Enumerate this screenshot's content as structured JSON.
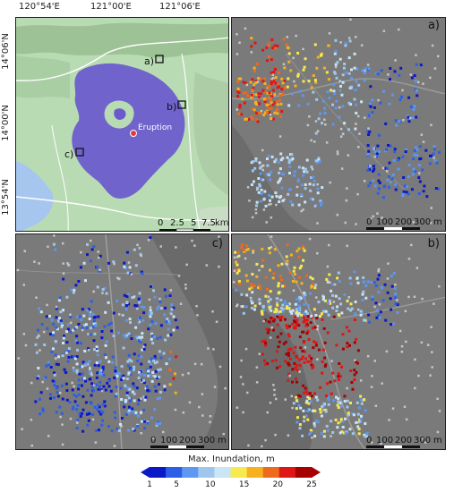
{
  "overview": {
    "lon_ticks": [
      "120°54'E",
      "121°00'E",
      "121°06'E"
    ],
    "lat_ticks": [
      "14°06'N",
      "14°00'N",
      "13°54'N"
    ],
    "eruption_label": "Eruption",
    "box_labels": [
      "a)",
      "b)",
      "c)"
    ],
    "scalebar": {
      "ticks": [
        "0",
        "2.5",
        "5",
        "7.5"
      ],
      "unit": "km"
    }
  },
  "panels": {
    "a": {
      "label": "a)",
      "scalebar": {
        "ticks": [
          "0",
          "100",
          "200",
          "300"
        ],
        "unit": "m"
      }
    },
    "b": {
      "label": "b)",
      "scalebar": {
        "ticks": [
          "0",
          "100",
          "200",
          "300"
        ],
        "unit": "m"
      }
    },
    "c": {
      "label": "c)",
      "scalebar": {
        "ticks": [
          "0",
          "100",
          "200",
          "300"
        ],
        "unit": "m"
      }
    }
  },
  "colorbar": {
    "title": "Max. Inundation, m",
    "tick_labels": [
      "1",
      "5",
      "10",
      "15",
      "20",
      "25"
    ],
    "tick_values": [
      1,
      5,
      10,
      15,
      20,
      25
    ],
    "range": [
      1,
      25
    ],
    "colors": [
      "#0a18c8",
      "#2c5fe6",
      "#5e97ef",
      "#9fc7ee",
      "#c9e6f6",
      "#f7ea4e",
      "#f6b21e",
      "#ee6a1d",
      "#e01515",
      "#a70000"
    ]
  },
  "colors": {
    "inundation_area": "#6a5acd",
    "terrain": "#b8d9b0",
    "water": "#a8c8ee",
    "eruption_point": "#e53935",
    "panel_bg": "#7a7a7a"
  }
}
